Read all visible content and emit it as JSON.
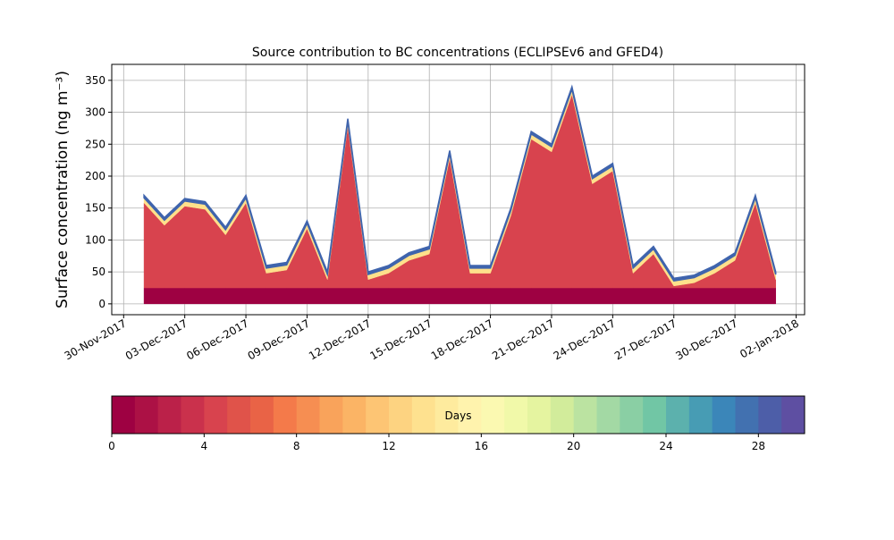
{
  "chart_data": {
    "type": "stacked_area",
    "title": "Source contribution to BC concentrations (ECLIPSEv6 and GFED4)",
    "y_label": "Surface concentration (ng m⁻³)",
    "x": [
      "2017-12-01",
      "2017-12-02",
      "2017-12-03",
      "2017-12-04",
      "2017-12-05",
      "2017-12-06",
      "2017-12-07",
      "2017-12-08",
      "2017-12-09",
      "2017-12-10",
      "2017-12-11",
      "2017-12-12",
      "2017-12-13",
      "2017-12-14",
      "2017-12-15",
      "2017-12-16",
      "2017-12-17",
      "2017-12-18",
      "2017-12-19",
      "2017-12-20",
      "2017-12-21",
      "2017-12-22",
      "2017-12-23",
      "2017-12-24",
      "2017-12-25",
      "2017-12-26",
      "2017-12-27",
      "2017-12-28",
      "2017-12-29",
      "2017-12-30",
      "2017-12-31",
      "2018-01-01"
    ],
    "series": [
      {
        "color": "#9e0142",
        "values": [
          25,
          25,
          25,
          25,
          25,
          25,
          25,
          25,
          25,
          25,
          25,
          25,
          25,
          25,
          25,
          25,
          25,
          25,
          25,
          25,
          25,
          25,
          25,
          25,
          25,
          25,
          25,
          25,
          25,
          25,
          25,
          25
        ]
      },
      {
        "color": "#d8434e",
        "values": [
          133,
          98,
          128,
          123,
          83,
          133,
          23,
          28,
          93,
          13,
          253,
          13,
          23,
          43,
          53,
          203,
          23,
          23,
          113,
          233,
          213,
          303,
          163,
          183,
          23,
          53,
          3,
          8,
          23,
          43,
          133,
          13
        ]
      },
      {
        "color": "#fee08b",
        "values": [
          8,
          8,
          8,
          8,
          8,
          8,
          8,
          8,
          8,
          8,
          8,
          8,
          8,
          8,
          8,
          8,
          8,
          8,
          8,
          8,
          8,
          8,
          8,
          8,
          8,
          8,
          8,
          8,
          8,
          8,
          8,
          8
        ]
      },
      {
        "color": "#3f64ad",
        "values": [
          4,
          4,
          4,
          4,
          4,
          4,
          4,
          4,
          4,
          4,
          4,
          4,
          4,
          4,
          4,
          4,
          4,
          4,
          4,
          4,
          4,
          4,
          4,
          4,
          4,
          4,
          4,
          4,
          4,
          4,
          4,
          4
        ]
      }
    ],
    "xlim": [
      "2017-11-29T10:00",
      "2018-01-02T10:00"
    ],
    "xticks": [
      {
        "value": "2017-11-30",
        "label": "30-Nov-2017"
      },
      {
        "value": "2017-12-03",
        "label": "03-Dec-2017"
      },
      {
        "value": "2017-12-06",
        "label": "06-Dec-2017"
      },
      {
        "value": "2017-12-09",
        "label": "09-Dec-2017"
      },
      {
        "value": "2017-12-12",
        "label": "12-Dec-2017"
      },
      {
        "value": "2017-12-15",
        "label": "15-Dec-2017"
      },
      {
        "value": "2017-12-18",
        "label": "18-Dec-2017"
      },
      {
        "value": "2017-12-21",
        "label": "21-Dec-2017"
      },
      {
        "value": "2017-12-24",
        "label": "24-Dec-2017"
      },
      {
        "value": "2017-12-27",
        "label": "27-Dec-2017"
      },
      {
        "value": "2017-12-30",
        "label": "30-Dec-2017"
      },
      {
        "value": "2018-01-02",
        "label": "02-Jan-2018"
      }
    ],
    "ylim": [
      -17,
      375
    ],
    "yticks": [
      0,
      50,
      100,
      150,
      200,
      250,
      300,
      350
    ],
    "grid": true,
    "colorbar": {
      "label": "Days",
      "lim": [
        0,
        30
      ],
      "ticks": [
        0,
        4,
        8,
        12,
        16,
        20,
        24,
        28
      ],
      "colors": [
        "#9e0142",
        "#ac1145",
        "#bb2149",
        "#ca314c",
        "#d8434e",
        "#e0534a",
        "#e96346",
        "#f47a4a",
        "#f68e52",
        "#f9a35b",
        "#fbb465",
        "#fdc574",
        "#fdd381",
        "#fee18f",
        "#feeb9e",
        "#fff3ad",
        "#fbf9b1",
        "#f1f9a9",
        "#e5f4a0",
        "#d2ec9b",
        "#bbe3a1",
        "#a3d9a4",
        "#8acfa4",
        "#71c6a5",
        "#5cb1ad",
        "#479cb4",
        "#3b86b9",
        "#4271b0",
        "#4d5ea8",
        "#5e4fa2"
      ]
    }
  }
}
